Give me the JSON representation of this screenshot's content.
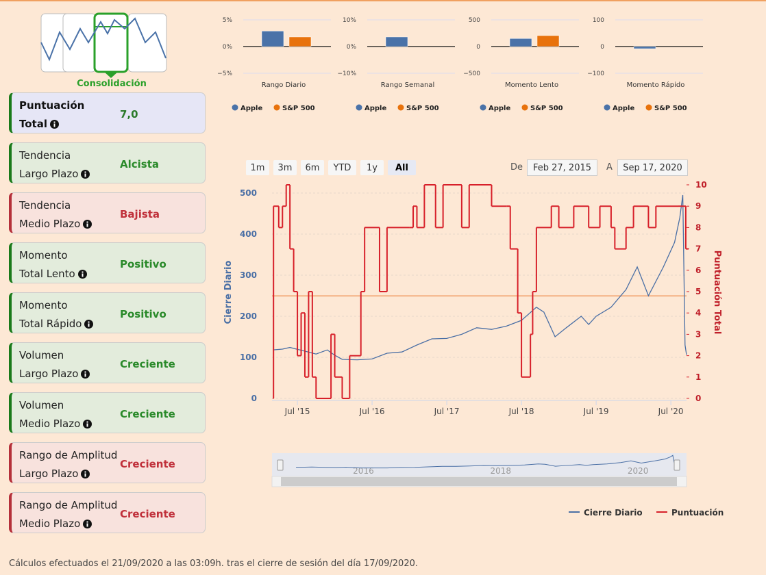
{
  "logo": {
    "label": "Consolidación"
  },
  "scores": [
    {
      "label": [
        "Puntuación",
        "Total"
      ],
      "value": "7,0",
      "tone": "neutral"
    },
    {
      "label": [
        "Tendencia",
        "Largo Plazo"
      ],
      "value": "Alcista",
      "tone": "positive"
    },
    {
      "label": [
        "Tendencia",
        "Medio Plazo"
      ],
      "value": "Bajista",
      "tone": "negative"
    },
    {
      "label": [
        "Momento",
        "Total Lento"
      ],
      "value": "Positivo",
      "tone": "positive"
    },
    {
      "label": [
        "Momento",
        "Total Rápido"
      ],
      "value": "Positivo",
      "tone": "positive"
    },
    {
      "label": [
        "Volumen",
        "Largo Plazo"
      ],
      "value": "Creciente",
      "tone": "positive"
    },
    {
      "label": [
        "Volumen",
        "Medio Plazo"
      ],
      "value": "Creciente",
      "tone": "positive"
    },
    {
      "label": [
        "Rango de Amplitud",
        "Largo Plazo"
      ],
      "value": "Creciente",
      "tone": "negative"
    },
    {
      "label": [
        "Rango de Amplitud",
        "Medio Plazo"
      ],
      "value": "Creciente",
      "tone": "negative"
    }
  ],
  "mini_charts": [
    {
      "type": "bar",
      "xlabel": "Rango Diario",
      "ylim": [
        -5,
        5
      ],
      "yticks": [
        {
          "value": 5,
          "label": "5%"
        },
        {
          "value": 0,
          "label": "0%"
        },
        {
          "value": -5,
          "label": "−5%"
        }
      ],
      "series": [
        {
          "name": "Apple",
          "color": "#4a72a8",
          "values": [
            2.9
          ]
        },
        {
          "name": "S&P 500",
          "color": "#e8720c",
          "values": [
            1.8
          ]
        }
      ]
    },
    {
      "type": "bar",
      "xlabel": "Rango Semanal",
      "ylim": [
        -10,
        10
      ],
      "yticks": [
        {
          "value": 10,
          "label": "10%"
        },
        {
          "value": 0,
          "label": "0%"
        },
        {
          "value": -10,
          "label": "−10%"
        }
      ],
      "series": [
        {
          "name": "Apple",
          "color": "#4a72a8",
          "values": [
            3.6
          ]
        },
        {
          "name": "S&P 500",
          "color": "#e8720c",
          "values": [
            0
          ]
        }
      ]
    },
    {
      "type": "bar",
      "xlabel": "Momento Lento",
      "ylim": [
        -500,
        500
      ],
      "yticks": [
        500,
        0,
        {
          "value": -500,
          "label": "−500"
        }
      ],
      "series": [
        {
          "name": "Apple",
          "color": "#4a72a8",
          "values": [
            150
          ]
        },
        {
          "name": "S&P 500",
          "color": "#e8720c",
          "values": [
            205
          ]
        }
      ]
    },
    {
      "type": "bar",
      "xlabel": "Momento Rápido",
      "ylim": [
        -100,
        100
      ],
      "yticks": [
        100,
        0,
        {
          "value": -100,
          "label": "−100"
        }
      ],
      "series": [
        {
          "name": "Apple",
          "color": "#4a72a8",
          "values": [
            -8
          ]
        },
        {
          "name": "S&P 500",
          "color": "#e8720c",
          "values": [
            0
          ]
        }
      ]
    }
  ],
  "main_chart": {
    "type": "line",
    "range_buttons": [
      "1m",
      "3m",
      "6m",
      "YTD",
      "1y",
      "All"
    ],
    "selected_range": 5,
    "from_label": "De",
    "from": "Feb 27, 2015",
    "to_label": "A",
    "to": "Sep 17, 2020",
    "ylabel": "Cierre Diario",
    "y2label": "Puntuación Total",
    "xlim": [
      2015.16,
      2020.71
    ],
    "xticks": [
      {
        "value": 2015.5,
        "label": "Jul '15"
      },
      {
        "value": 2016.5,
        "label": "Jul '16"
      },
      {
        "value": 2017.5,
        "label": "Jul '17"
      },
      {
        "value": 2018.5,
        "label": "Jul '18"
      },
      {
        "value": 2019.5,
        "label": "Jul '19"
      },
      {
        "value": 2020.5,
        "label": "Jul '20"
      }
    ],
    "ylim": [
      0,
      520
    ],
    "yticks": [
      0,
      100,
      200,
      300,
      400,
      500
    ],
    "y2lim": [
      0,
      10
    ],
    "y2ticks": [
      0,
      1,
      2,
      3,
      4,
      5,
      6,
      7,
      8,
      9,
      10
    ],
    "reference_line": {
      "axis": "y2",
      "value": 4.8,
      "color": "#f4b183"
    },
    "series": [
      {
        "name": "Cierre Diario",
        "color": "#4a6fa5",
        "axis": "y",
        "x": [
          2015.17,
          2015.3,
          2015.4,
          2015.6,
          2015.75,
          2015.9,
          2016.0,
          2016.1,
          2016.3,
          2016.5,
          2016.7,
          2016.9,
          2017.1,
          2017.3,
          2017.5,
          2017.7,
          2017.9,
          2018.1,
          2018.3,
          2018.5,
          2018.7,
          2018.8,
          2018.95,
          2019.1,
          2019.3,
          2019.4,
          2019.5,
          2019.7,
          2019.9,
          2020.05,
          2020.2,
          2020.4,
          2020.55,
          2020.62,
          2020.66,
          2020.69,
          2020.71
        ],
        "values": [
          118,
          120,
          124,
          115,
          108,
          118,
          105,
          95,
          94,
          96,
          110,
          113,
          130,
          145,
          146,
          156,
          172,
          168,
          176,
          190,
          222,
          210,
          150,
          172,
          200,
          180,
          200,
          222,
          265,
          320,
          250,
          320,
          380,
          440,
          495,
          130,
          106
        ]
      },
      {
        "name": "Puntuación",
        "color": "#d7202a",
        "axis": "y2",
        "x": [
          2015.17,
          2015.18,
          2015.25,
          2015.3,
          2015.35,
          2015.4,
          2015.45,
          2015.5,
          2015.55,
          2015.6,
          2015.65,
          2015.7,
          2015.75,
          2015.95,
          2016.0,
          2016.1,
          2016.2,
          2016.35,
          2016.4,
          2016.6,
          2016.7,
          2017.0,
          2017.05,
          2017.1,
          2017.2,
          2017.35,
          2017.45,
          2017.7,
          2017.8,
          2018.1,
          2018.3,
          2018.35,
          2018.45,
          2018.5,
          2018.62,
          2018.65,
          2018.7,
          2018.9,
          2019.0,
          2019.2,
          2019.4,
          2019.55,
          2019.7,
          2019.75,
          2019.9,
          2020.0,
          2020.2,
          2020.3,
          2020.6,
          2020.7
        ],
        "values": [
          0,
          9,
          8,
          9,
          10,
          7,
          5,
          2,
          4,
          1,
          5,
          1,
          0,
          3,
          1,
          0,
          2,
          5,
          8,
          5,
          8,
          8,
          9,
          8,
          10,
          8,
          10,
          8,
          10,
          9,
          9,
          7,
          4,
          1,
          3,
          5,
          8,
          9,
          8,
          9,
          8,
          9,
          8,
          7,
          8,
          9,
          8,
          9,
          9,
          7
        ]
      }
    ],
    "navigator": {
      "xlim": [
        2014.95,
        2020.72
      ],
      "xticks": [
        2016,
        2018,
        2020
      ]
    }
  },
  "footer": "Cálculos efectuados el 21/09/2020 a las 03:09h. tras el cierre de sesión del día 17/09/2020."
}
